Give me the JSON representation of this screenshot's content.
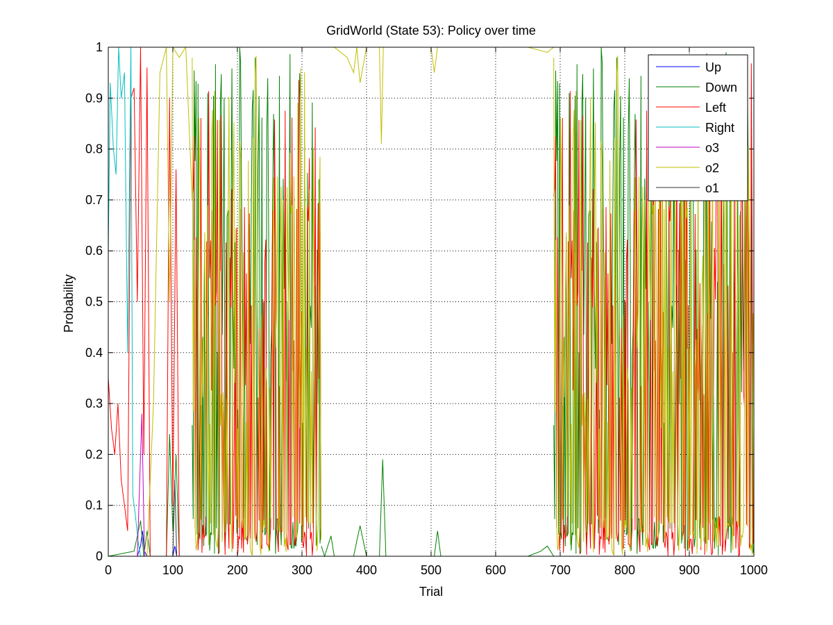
{
  "chart_data": {
    "type": "line",
    "title": "GridWorld (State 53): Policy over time",
    "xlabel": "Trial",
    "ylabel": "Probability",
    "xlim": [
      0,
      1000
    ],
    "ylim": [
      0,
      1
    ],
    "x_ticks": [
      "0",
      "100",
      "200",
      "300",
      "400",
      "500",
      "600",
      "700",
      "800",
      "900",
      "1000"
    ],
    "y_ticks": [
      "0",
      "0.1",
      "0.2",
      "0.3",
      "0.4",
      "0.5",
      "0.6",
      "0.7",
      "0.8",
      "0.9",
      "1"
    ],
    "grid": true,
    "grid_style": "dotted",
    "legend_position": "top-right",
    "series": [
      {
        "name": "Up",
        "color": "#0000ff",
        "segments": [
          {
            "x": [
              0,
              30,
              45,
              50,
              53,
              56,
              60,
              80,
              100,
              103,
              106,
              110,
              130,
              300,
              500,
              700,
              900,
              1000
            ],
            "y": [
              0.0,
              0.0,
              0.0,
              0.02,
              0.05,
              0.01,
              0.0,
              0.0,
              0.0,
              0.02,
              0.0,
              0.0,
              0.0,
              0.0,
              0.0,
              0.0,
              0.0,
              0.0
            ]
          }
        ]
      },
      {
        "name": "Down",
        "color": "#008000",
        "segments": [
          {
            "x": [
              0,
              40,
              50,
              55,
              60,
              65,
              70,
              90,
              95,
              100,
              105,
              110,
              125
            ],
            "y": [
              0.0,
              0.01,
              0.07,
              0.0,
              0.05,
              0.0,
              0.0,
              0.0,
              0.24,
              0.05,
              0.2,
              0.0,
              0.0
            ]
          },
          {
            "x": [
              130,
              1000
            ],
            "y": [
              0.0,
              0.95
            ],
            "osc": [
              [
                130,
                330,
                0.0,
                1.0,
                3
              ],
              [
                690,
                1000,
                0.0,
                1.0,
                3
              ]
            ]
          },
          {
            "x": [
              330,
              335,
              345,
              350,
              380,
              385,
              390,
              400,
              420,
              425,
              430,
              450,
              480,
              505,
              510,
              515,
              550,
              600,
              650,
              670,
              680,
              690
            ],
            "y": [
              0.02,
              0.0,
              0.04,
              0.0,
              0.0,
              0.03,
              0.06,
              0.0,
              0.0,
              0.19,
              0.0,
              0.0,
              0.0,
              0.0,
              0.05,
              0.0,
              0.0,
              0.0,
              0.0,
              0.01,
              0.02,
              0.0
            ]
          }
        ]
      },
      {
        "name": "Left",
        "color": "#ff0000",
        "segments": [
          {
            "x": [
              0,
              5,
              10,
              15,
              20,
              25,
              30,
              35,
              40,
              45,
              50,
              55,
              60,
              65,
              70
            ],
            "y": [
              0.35,
              0.25,
              0.2,
              0.3,
              0.15,
              0.1,
              0.05,
              0.9,
              0.92,
              0.5,
              1.0,
              0.2,
              0.96,
              0.0,
              0.0
            ]
          },
          {
            "x": [
              90,
              95,
              100,
              105,
              110
            ],
            "y": [
              0.0,
              0.9,
              0.1,
              0.76,
              0.0
            ]
          },
          {
            "x": [
              130,
              1000
            ],
            "y": [
              0.0,
              0.45
            ],
            "osc": [
              [
                130,
                330,
                0.0,
                1.0,
                2
              ],
              [
                690,
                1000,
                0.0,
                1.0,
                2
              ]
            ]
          }
        ]
      },
      {
        "name": "Right",
        "color": "#00bfbf",
        "segments": [
          {
            "x": [
              0,
              3,
              8,
              12,
              16,
              20,
              25,
              30,
              35,
              38,
              42,
              46,
              50
            ],
            "y": [
              0.6,
              0.93,
              0.8,
              0.75,
              1.0,
              0.9,
              0.95,
              0.4,
              1.0,
              0.12,
              0.08,
              0.03,
              0.0
            ]
          },
          {
            "x": [
              50,
              1000
            ],
            "y": [
              0.0,
              0.0
            ]
          }
        ]
      },
      {
        "name": "o3",
        "color": "#bf00bf",
        "segments": [
          {
            "x": [
              0,
              45,
              52,
              56,
              60,
              100,
              1000
            ],
            "y": [
              0.0,
              0.0,
              0.28,
              0.0,
              0.0,
              0.0,
              0.0
            ]
          }
        ]
      },
      {
        "name": "o2",
        "color": "#bfbf00",
        "segments": [
          {
            "x": [
              60,
              70,
              80,
              90,
              95,
              100,
              110,
              120,
              130
            ],
            "y": [
              0.0,
              0.3,
              0.95,
              1.0,
              0.5,
              1.0,
              0.98,
              1.0,
              0.7
            ]
          },
          {
            "x": [
              130,
              1000
            ],
            "y": [
              0.5,
              0.5
            ],
            "osc": [
              [
                130,
                330,
                0.0,
                1.0,
                1
              ],
              [
                690,
                1000,
                0.0,
                1.0,
                1
              ]
            ]
          },
          {
            "x": [
              330,
              350,
              370,
              380,
              385,
              390,
              400,
              420,
              423,
              426,
              430,
              480,
              500,
              505,
              510,
              520,
              550,
              600,
              650,
              680,
              690
            ],
            "y": [
              1.0,
              1.0,
              0.98,
              0.95,
              1.0,
              0.93,
              1.0,
              1.0,
              0.81,
              1.0,
              1.0,
              1.0,
              1.0,
              0.95,
              1.0,
              1.0,
              1.0,
              1.0,
              1.0,
              0.99,
              1.0
            ]
          }
        ]
      },
      {
        "name": "o1",
        "color": "#333333",
        "segments": [
          {
            "x": [
              0,
              100,
              103,
              106,
              1000
            ],
            "y": [
              0.0,
              0.0,
              0.15,
              0.0,
              0.0
            ]
          }
        ]
      }
    ]
  }
}
